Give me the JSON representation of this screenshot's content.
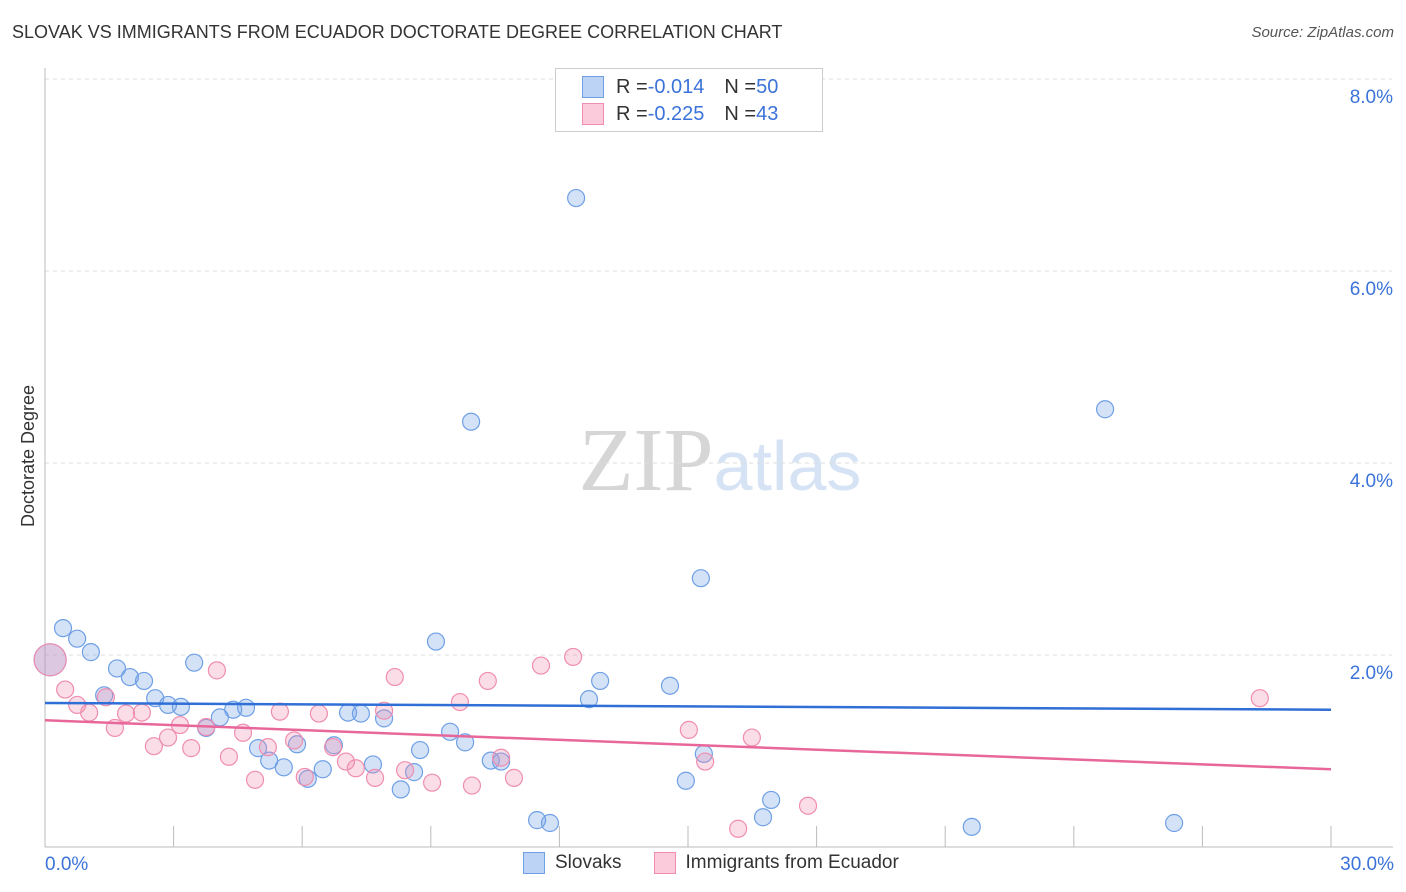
{
  "chart_data": {
    "type": "scatter",
    "title": "SLOVAK VS IMMIGRANTS FROM ECUADOR DOCTORATE DEGREE CORRELATION CHART",
    "source": "Source: ZipAtlas.com",
    "xlabel": "",
    "ylabel": "Doctorate Degree",
    "xlim": [
      0,
      30
    ],
    "ylim": [
      0,
      8
    ],
    "x_tick_labels": [
      "0.0%",
      "30.0%"
    ],
    "y_ticks": [
      2,
      4,
      6,
      8
    ],
    "y_tick_labels": [
      "2.0%",
      "4.0%",
      "6.0%",
      "8.0%"
    ],
    "grid": true,
    "watermark": "ZIPatlas",
    "legend": [
      {
        "r_label": "R = ",
        "r": "-0.014",
        "n_label": "N = ",
        "n": "50"
      },
      {
        "r_label": "R = ",
        "r": "-0.225",
        "n_label": "N = ",
        "n": "43"
      }
    ],
    "series": [
      {
        "name": "Slovaks",
        "color": "#6fa0e6",
        "line_color": "#2f6fd6",
        "trend": [
          [
            0,
            1.5
          ],
          [
            30,
            1.43
          ]
        ],
        "points": [
          [
            0.12,
            1.95
          ],
          [
            0.42,
            2.28
          ],
          [
            0.75,
            2.17
          ],
          [
            1.07,
            2.03
          ],
          [
            1.68,
            1.86
          ],
          [
            1.98,
            1.77
          ],
          [
            2.31,
            1.73
          ],
          [
            1.38,
            1.58
          ],
          [
            2.57,
            1.55
          ],
          [
            2.87,
            1.48
          ],
          [
            3.17,
            1.46
          ],
          [
            3.48,
            1.92
          ],
          [
            3.76,
            1.24
          ],
          [
            4.08,
            1.35
          ],
          [
            4.39,
            1.43
          ],
          [
            4.69,
            1.45
          ],
          [
            4.97,
            1.03
          ],
          [
            5.23,
            0.9
          ],
          [
            5.57,
            0.83
          ],
          [
            5.88,
            1.07
          ],
          [
            6.13,
            0.71
          ],
          [
            6.48,
            0.81
          ],
          [
            6.74,
            1.06
          ],
          [
            7.07,
            1.4
          ],
          [
            7.37,
            1.39
          ],
          [
            7.65,
            0.86
          ],
          [
            7.91,
            1.34
          ],
          [
            8.3,
            0.6
          ],
          [
            8.61,
            0.78
          ],
          [
            8.75,
            1.01
          ],
          [
            9.12,
            2.14
          ],
          [
            9.45,
            1.2
          ],
          [
            9.8,
            1.09
          ],
          [
            9.94,
            4.43
          ],
          [
            10.4,
            0.9
          ],
          [
            10.64,
            0.89
          ],
          [
            11.48,
            0.28
          ],
          [
            11.78,
            0.25
          ],
          [
            12.39,
            6.76
          ],
          [
            12.69,
            1.54
          ],
          [
            12.95,
            1.73
          ],
          [
            14.58,
            1.68
          ],
          [
            14.95,
            0.69
          ],
          [
            15.3,
            2.8
          ],
          [
            15.37,
            0.97
          ],
          [
            16.75,
            0.31
          ],
          [
            16.94,
            0.49
          ],
          [
            21.62,
            0.21
          ],
          [
            24.73,
            4.56
          ],
          [
            26.34,
            0.25
          ]
        ]
      },
      {
        "name": "Immigrants from Ecuador",
        "color": "#f08db0",
        "line_color": "#e8679a",
        "trend": [
          [
            0,
            1.32
          ],
          [
            30,
            0.81
          ]
        ],
        "points": [
          [
            0.12,
            1.95
          ],
          [
            0.47,
            1.64
          ],
          [
            0.75,
            1.48
          ],
          [
            1.03,
            1.4
          ],
          [
            1.42,
            1.56
          ],
          [
            1.63,
            1.24
          ],
          [
            1.89,
            1.39
          ],
          [
            2.26,
            1.4
          ],
          [
            2.54,
            1.05
          ],
          [
            2.87,
            1.14
          ],
          [
            3.15,
            1.27
          ],
          [
            3.41,
            1.03
          ],
          [
            3.76,
            1.25
          ],
          [
            4.01,
            1.84
          ],
          [
            4.29,
            0.94
          ],
          [
            4.62,
            1.19
          ],
          [
            4.9,
            0.7
          ],
          [
            5.2,
            1.04
          ],
          [
            5.48,
            1.41
          ],
          [
            5.81,
            1.11
          ],
          [
            6.06,
            0.73
          ],
          [
            6.39,
            1.39
          ],
          [
            6.72,
            1.04
          ],
          [
            7.02,
            0.89
          ],
          [
            7.25,
            0.82
          ],
          [
            7.7,
            0.72
          ],
          [
            7.91,
            1.42
          ],
          [
            8.16,
            1.77
          ],
          [
            8.4,
            0.8
          ],
          [
            9.03,
            0.67
          ],
          [
            9.68,
            1.51
          ],
          [
            9.96,
            0.64
          ],
          [
            10.33,
            1.73
          ],
          [
            10.64,
            0.93
          ],
          [
            10.94,
            0.72
          ],
          [
            11.57,
            1.89
          ],
          [
            12.32,
            1.98
          ],
          [
            15.02,
            1.22
          ],
          [
            15.4,
            0.89
          ],
          [
            16.17,
            0.19
          ],
          [
            16.49,
            1.14
          ],
          [
            17.8,
            0.43
          ],
          [
            28.34,
            1.55
          ]
        ]
      }
    ]
  }
}
